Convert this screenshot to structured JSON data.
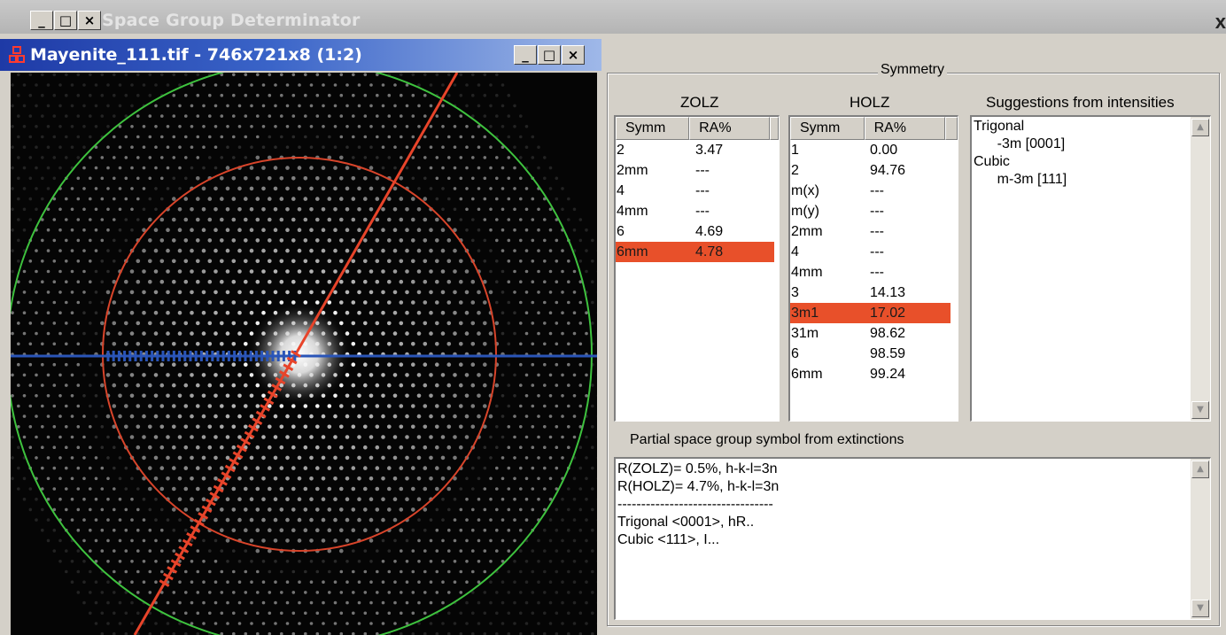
{
  "outer_window": {
    "title": "Space Group Determinator",
    "minimize_glyph": "_",
    "maximize_glyph": "□",
    "close_glyph": "×",
    "right_close_glyph": "x"
  },
  "image_window": {
    "title": "Mayenite_111.tif - 746x721x8 (1:2)",
    "icon": "image-app-icon",
    "minimize_glyph": "_",
    "maximize_glyph": "□",
    "close_glyph": "×",
    "overlay_colors": {
      "outer_circle": "#3ec23e",
      "inner_circle": "#d8442a",
      "horizontal_line": "#2a55b8",
      "diagonal_line": "#e8442a"
    }
  },
  "symmetry": {
    "group_label": "Symmetry",
    "zolz": {
      "title": "ZOLZ",
      "col_symm": "Symm",
      "col_ra": "RA%",
      "rows": [
        {
          "symm": "2",
          "ra": "3.47",
          "selected": false
        },
        {
          "symm": "2mm",
          "ra": "---",
          "selected": false
        },
        {
          "symm": "4",
          "ra": "---",
          "selected": false
        },
        {
          "symm": "4mm",
          "ra": "---",
          "selected": false
        },
        {
          "symm": "6",
          "ra": "4.69",
          "selected": false
        },
        {
          "symm": "6mm",
          "ra": "4.78",
          "selected": true
        }
      ]
    },
    "holz": {
      "title": "HOLZ",
      "col_symm": "Symm",
      "col_ra": "RA%",
      "rows": [
        {
          "symm": "1",
          "ra": "0.00",
          "selected": false
        },
        {
          "symm": "2",
          "ra": "94.76",
          "selected": false
        },
        {
          "symm": "m(x)",
          "ra": "---",
          "selected": false
        },
        {
          "symm": "m(y)",
          "ra": "---",
          "selected": false
        },
        {
          "symm": "2mm",
          "ra": "---",
          "selected": false
        },
        {
          "symm": "4",
          "ra": "---",
          "selected": false
        },
        {
          "symm": "4mm",
          "ra": "---",
          "selected": false
        },
        {
          "symm": "3",
          "ra": "14.13",
          "selected": false
        },
        {
          "symm": "3m1",
          "ra": "17.02",
          "selected": true
        },
        {
          "symm": "31m",
          "ra": "98.62",
          "selected": false
        },
        {
          "symm": "6",
          "ra": "98.59",
          "selected": false
        },
        {
          "symm": "6mm",
          "ra": "99.24",
          "selected": false
        }
      ]
    },
    "suggestions": {
      "title": "Suggestions from intensities",
      "lines": [
        "Trigonal",
        "      -3m [0001]",
        "Cubic",
        "      m-3m [111]"
      ]
    }
  },
  "extinctions": {
    "title": "Partial space group symbol from extinctions",
    "lines": [
      "R(ZOLZ)= 0.5%, h-k-l=3n",
      "R(HOLZ)= 4.7%, h-k-l=3n",
      "---------------------------------",
      "Trigonal <0001>, hR..",
      "Cubic <111>, I..."
    ]
  },
  "scroll_up_glyph": "▲",
  "scroll_down_glyph": "▼"
}
